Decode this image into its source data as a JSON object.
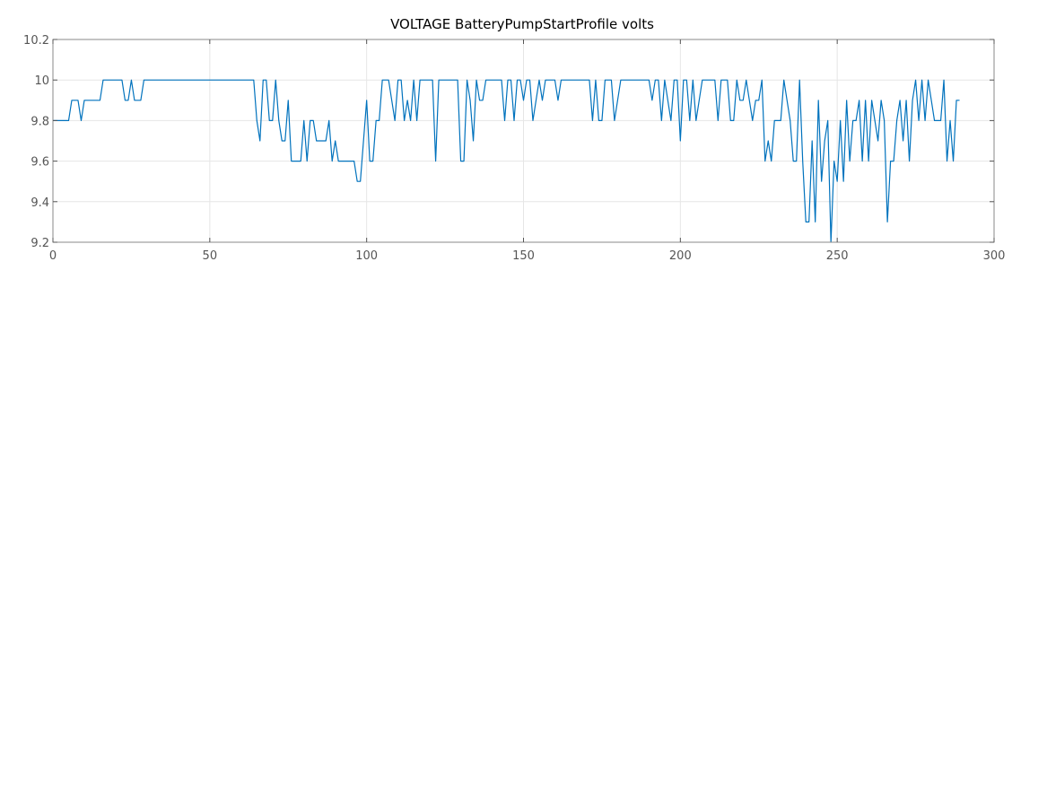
{
  "chart_data": {
    "type": "line",
    "title": "VOLTAGE BatteryPumpStartProfile volts",
    "xlabel": "",
    "ylabel": "",
    "xlim": [
      0,
      300
    ],
    "ylim": [
      9.2,
      10.2
    ],
    "xticks": [
      0,
      50,
      100,
      150,
      200,
      250,
      300
    ],
    "yticks": [
      9.2,
      9.4,
      9.6,
      9.8,
      10,
      10.2
    ],
    "xtick_labels": [
      "0",
      "50",
      "100",
      "150",
      "200",
      "250",
      "300"
    ],
    "ytick_labels": [
      "9.2",
      "9.4",
      "9.6",
      "9.8",
      "10",
      "10.2"
    ],
    "grid": true,
    "series": [
      {
        "color": "#0072bd",
        "values": [
          9.8,
          9.8,
          9.8,
          9.8,
          9.8,
          9.8,
          9.9,
          9.9,
          9.9,
          9.8,
          9.9,
          9.9,
          9.9,
          9.9,
          9.9,
          9.9,
          10,
          10,
          10,
          10,
          10,
          10,
          10,
          9.9,
          9.9,
          10,
          9.9,
          9.9,
          9.9,
          10,
          10,
          10,
          10,
          10,
          10,
          10,
          10,
          10,
          10,
          10,
          10,
          10,
          10,
          10,
          10,
          10,
          10,
          10,
          10,
          10,
          10,
          10,
          10,
          10,
          10,
          10,
          10,
          10,
          10,
          10,
          10,
          10,
          10,
          10,
          10,
          9.8,
          9.7,
          10,
          10,
          9.8,
          9.8,
          10,
          9.8,
          9.7,
          9.7,
          9.9,
          9.6,
          9.6,
          9.6,
          9.6,
          9.8,
          9.6,
          9.8,
          9.8,
          9.7,
          9.7,
          9.7,
          9.7,
          9.8,
          9.6,
          9.7,
          9.6,
          9.6,
          9.6,
          9.6,
          9.6,
          9.6,
          9.5,
          9.5,
          9.7,
          9.9,
          9.6,
          9.6,
          9.8,
          9.8,
          10,
          10,
          10,
          9.9,
          9.8,
          10,
          10,
          9.8,
          9.9,
          9.8,
          10,
          9.8,
          10,
          10,
          10,
          10,
          10,
          9.6,
          10,
          10,
          10,
          10,
          10,
          10,
          10,
          9.6,
          9.6,
          10,
          9.9,
          9.7,
          10,
          9.9,
          9.9,
          10,
          10,
          10,
          10,
          10,
          10,
          9.8,
          10,
          10,
          9.8,
          10,
          10,
          9.9,
          10,
          10,
          9.8,
          9.9,
          10,
          9.9,
          10,
          10,
          10,
          10,
          9.9,
          10,
          10,
          10,
          10,
          10,
          10,
          10,
          10,
          10,
          10,
          9.8,
          10,
          9.8,
          9.8,
          10,
          10,
          10,
          9.8,
          9.9,
          10,
          10,
          10,
          10,
          10,
          10,
          10,
          10,
          10,
          10,
          9.9,
          10,
          10,
          9.8,
          10,
          9.9,
          9.8,
          10,
          10,
          9.7,
          10,
          10,
          9.8,
          10,
          9.8,
          9.9,
          10,
          10,
          10,
          10,
          10,
          9.8,
          10,
          10,
          10,
          9.8,
          9.8,
          10,
          9.9,
          9.9,
          10,
          9.9,
          9.8,
          9.9,
          9.9,
          10,
          9.6,
          9.7,
          9.6,
          9.8,
          9.8,
          9.8,
          10,
          9.9,
          9.8,
          9.6,
          9.6,
          10,
          9.6,
          9.3,
          9.3,
          9.7,
          9.3,
          9.9,
          9.5,
          9.7,
          9.8,
          9.2,
          9.6,
          9.5,
          9.8,
          9.5,
          9.9,
          9.6,
          9.8,
          9.8,
          9.9,
          9.6,
          9.9,
          9.6,
          9.9,
          9.8,
          9.7,
          9.9,
          9.8,
          9.3,
          9.6,
          9.6,
          9.8,
          9.9,
          9.7,
          9.9,
          9.6,
          9.9,
          10,
          9.8,
          10,
          9.8,
          10,
          9.9,
          9.8,
          9.8,
          9.8,
          10,
          9.6,
          9.8,
          9.6,
          9.9,
          9.9
        ]
      }
    ]
  }
}
